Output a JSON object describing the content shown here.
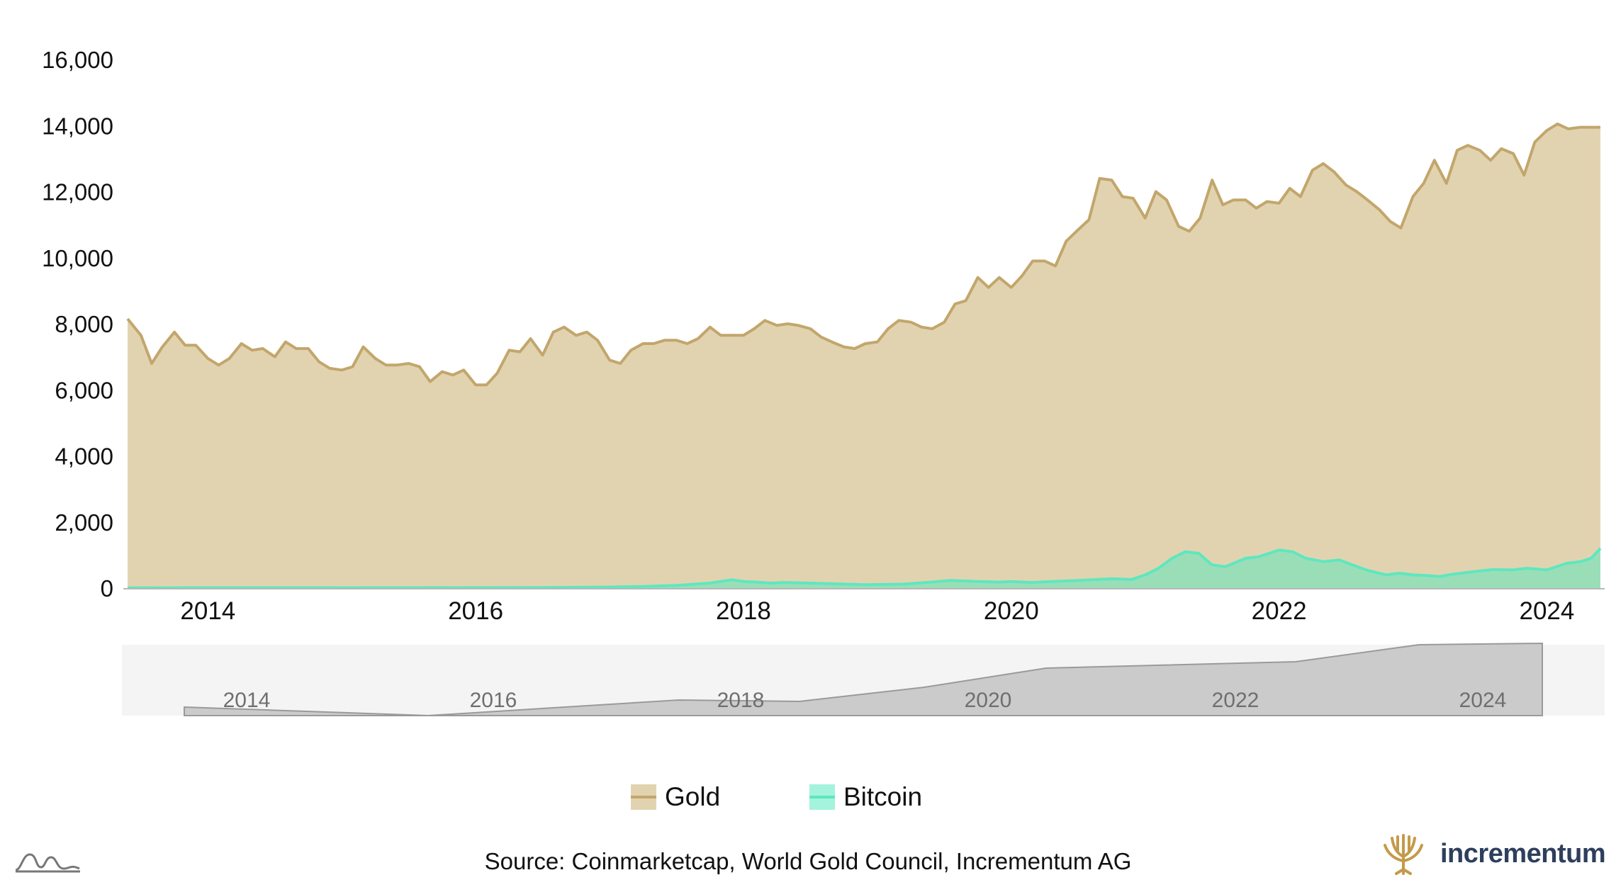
{
  "chart_data": {
    "type": "area",
    "title": "",
    "xlabel": "",
    "ylabel": "",
    "ylim": [
      0,
      16000
    ],
    "xlim": [
      2013.4,
      2024.4
    ],
    "yticks": [
      "0",
      "2,000",
      "4,000",
      "6,000",
      "8,000",
      "10,000",
      "12,000",
      "14,000",
      "16,000"
    ],
    "xticks": [
      "2014",
      "2016",
      "2018",
      "2020",
      "2022",
      "2024"
    ],
    "grid": false,
    "legend_position": "bottom",
    "series": [
      {
        "name": "Gold",
        "color": "#c2a66c",
        "fill": "#e2d3b0",
        "x": [
          2013.4,
          2013.5,
          2013.58,
          2013.66,
          2013.75,
          2013.83,
          2013.91,
          2014.0,
          2014.08,
          2014.16,
          2014.25,
          2014.33,
          2014.41,
          2014.5,
          2014.58,
          2014.66,
          2014.75,
          2014.83,
          2014.91,
          2015.0,
          2015.08,
          2015.16,
          2015.25,
          2015.33,
          2015.41,
          2015.5,
          2015.58,
          2015.66,
          2015.75,
          2015.83,
          2015.91,
          2016.0,
          2016.08,
          2016.16,
          2016.25,
          2016.33,
          2016.41,
          2016.5,
          2016.58,
          2016.66,
          2016.75,
          2016.83,
          2016.91,
          2017.0,
          2017.08,
          2017.16,
          2017.25,
          2017.33,
          2017.41,
          2017.5,
          2017.58,
          2017.66,
          2017.75,
          2017.83,
          2017.91,
          2018.0,
          2018.08,
          2018.16,
          2018.25,
          2018.33,
          2018.41,
          2018.5,
          2018.58,
          2018.66,
          2018.75,
          2018.83,
          2018.91,
          2019.0,
          2019.08,
          2019.16,
          2019.25,
          2019.33,
          2019.41,
          2019.5,
          2019.58,
          2019.66,
          2019.75,
          2019.83,
          2019.91,
          2020.0,
          2020.08,
          2020.16,
          2020.25,
          2020.33,
          2020.41,
          2020.5,
          2020.58,
          2020.66,
          2020.75,
          2020.83,
          2020.91,
          2021.0,
          2021.08,
          2021.16,
          2021.25,
          2021.33,
          2021.41,
          2021.5,
          2021.58,
          2021.66,
          2021.75,
          2021.83,
          2021.91,
          2022.0,
          2022.08,
          2022.16,
          2022.25,
          2022.33,
          2022.41,
          2022.5,
          2022.58,
          2022.66,
          2022.75,
          2022.83,
          2022.91,
          2023.0,
          2023.08,
          2023.16,
          2023.25,
          2023.33,
          2023.41,
          2023.5,
          2023.58,
          2023.66,
          2023.75,
          2023.83,
          2023.91,
          2024.0,
          2024.08,
          2024.16,
          2024.25,
          2024.33,
          2024.4
        ],
        "values": [
          8150,
          7650,
          6800,
          7300,
          7750,
          7350,
          7350,
          6950,
          6750,
          6950,
          7400,
          7200,
          7250,
          7000,
          7450,
          7250,
          7250,
          6850,
          6650,
          6600,
          6700,
          7300,
          6950,
          6750,
          6750,
          6800,
          6700,
          6250,
          6550,
          6450,
          6600,
          6150,
          6150,
          6500,
          7200,
          7150,
          7550,
          7050,
          7750,
          7900,
          7650,
          7750,
          7500,
          6900,
          6800,
          7200,
          7400,
          7400,
          7500,
          7500,
          7400,
          7550,
          7900,
          7650,
          7650,
          7650,
          7850,
          8100,
          7950,
          8000,
          7950,
          7850,
          7600,
          7450,
          7300,
          7250,
          7400,
          7450,
          7850,
          8100,
          8050,
          7900,
          7850,
          8050,
          8600,
          8700,
          9400,
          9100,
          9400,
          9100,
          9450,
          9900,
          9900,
          9750,
          10500,
          10850,
          11150,
          12400,
          12350,
          11850,
          11800,
          11200,
          12000,
          11750,
          10950,
          10800,
          11200,
          12350,
          11600,
          11750,
          11750,
          11500,
          11700,
          11650,
          12100,
          11850,
          12650,
          12850,
          12600,
          12200,
          12000,
          11750,
          11450,
          11100,
          10900,
          11850,
          12250,
          12950,
          12250,
          13250,
          13400,
          13250,
          12950,
          13300,
          13150,
          12500,
          13500,
          13850,
          14050,
          13900,
          13950,
          13950,
          13950
        ]
      },
      {
        "name": "Bitcoin",
        "color": "#5ee7bf",
        "fill": "rgba(94,231,191,0.55)",
        "x": [
          2013.4,
          2014.0,
          2015.0,
          2016.0,
          2016.5,
          2017.0,
          2017.25,
          2017.5,
          2017.75,
          2017.91,
          2018.0,
          2018.1,
          2018.2,
          2018.3,
          2018.5,
          2018.75,
          2018.91,
          2019.2,
          2019.4,
          2019.55,
          2019.75,
          2019.9,
          2020.0,
          2020.15,
          2020.3,
          2020.5,
          2020.75,
          2020.9,
          2021.0,
          2021.1,
          2021.2,
          2021.3,
          2021.4,
          2021.5,
          2021.6,
          2021.75,
          2021.85,
          2022.0,
          2022.1,
          2022.2,
          2022.33,
          2022.45,
          2022.55,
          2022.65,
          2022.8,
          2022.9,
          2023.0,
          2023.1,
          2023.2,
          2023.3,
          2023.5,
          2023.6,
          2023.75,
          2023.85,
          2024.0,
          2024.15,
          2024.25,
          2024.33,
          2024.4
        ],
        "values": [
          5,
          10,
          8,
          12,
          18,
          30,
          50,
          80,
          150,
          250,
          200,
          180,
          150,
          170,
          150,
          120,
          100,
          120,
          180,
          230,
          200,
          180,
          200,
          170,
          200,
          230,
          280,
          260,
          400,
          600,
          900,
          1100,
          1050,
          700,
          650,
          900,
          950,
          1150,
          1100,
          900,
          800,
          850,
          700,
          550,
          400,
          450,
          400,
          380,
          350,
          420,
          520,
          560,
          550,
          600,
          550,
          750,
          800,
          900,
          1200
        ]
      }
    ]
  },
  "navigator": {
    "labels": [
      "2014",
      "2016",
      "2018",
      "2020",
      "2022",
      "2024"
    ]
  },
  "legend": {
    "items": [
      {
        "label": "Gold",
        "color": "#c2a66c",
        "fill": "#e2d3b0"
      },
      {
        "label": "Bitcoin",
        "color": "#5ee7bf",
        "fill": "#a4f3dc"
      }
    ]
  },
  "footer": {
    "source": "Source: Coinmarketcap, World Gold Council, Incrementum AG",
    "brand": "incrementum",
    "brand_color": "#2e3f5c",
    "logo_color": "#c49a4a"
  }
}
